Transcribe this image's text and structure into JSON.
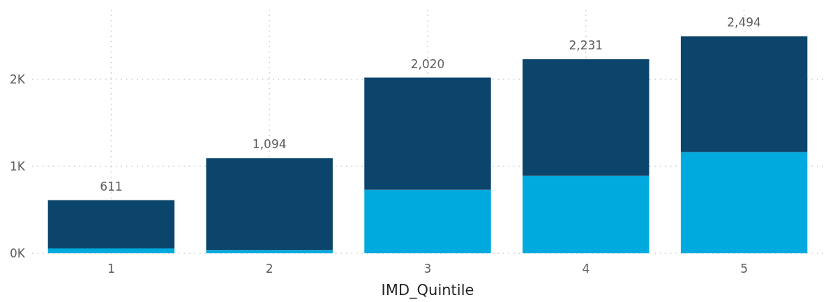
{
  "chart_data": {
    "type": "bar",
    "stacked": true,
    "xlabel": "IMD_Quintile",
    "categories": [
      "1",
      "2",
      "3",
      "4",
      "5"
    ],
    "series": [
      {
        "color": "#00aade",
        "values": [
          56,
          37,
          730,
          890,
          1163
        ]
      },
      {
        "color": "#0c456b",
        "values": [
          555,
          1057,
          1290,
          1341,
          1331
        ]
      }
    ],
    "totals": [
      "611",
      "1,094",
      "2,020",
      "2,231",
      "2,494"
    ],
    "ylim": [
      0,
      2800
    ],
    "yticks": [
      {
        "value": 0,
        "label": "0K"
      },
      {
        "value": 1000,
        "label": "1K"
      },
      {
        "value": 2000,
        "label": "2K"
      }
    ],
    "grid": true
  }
}
